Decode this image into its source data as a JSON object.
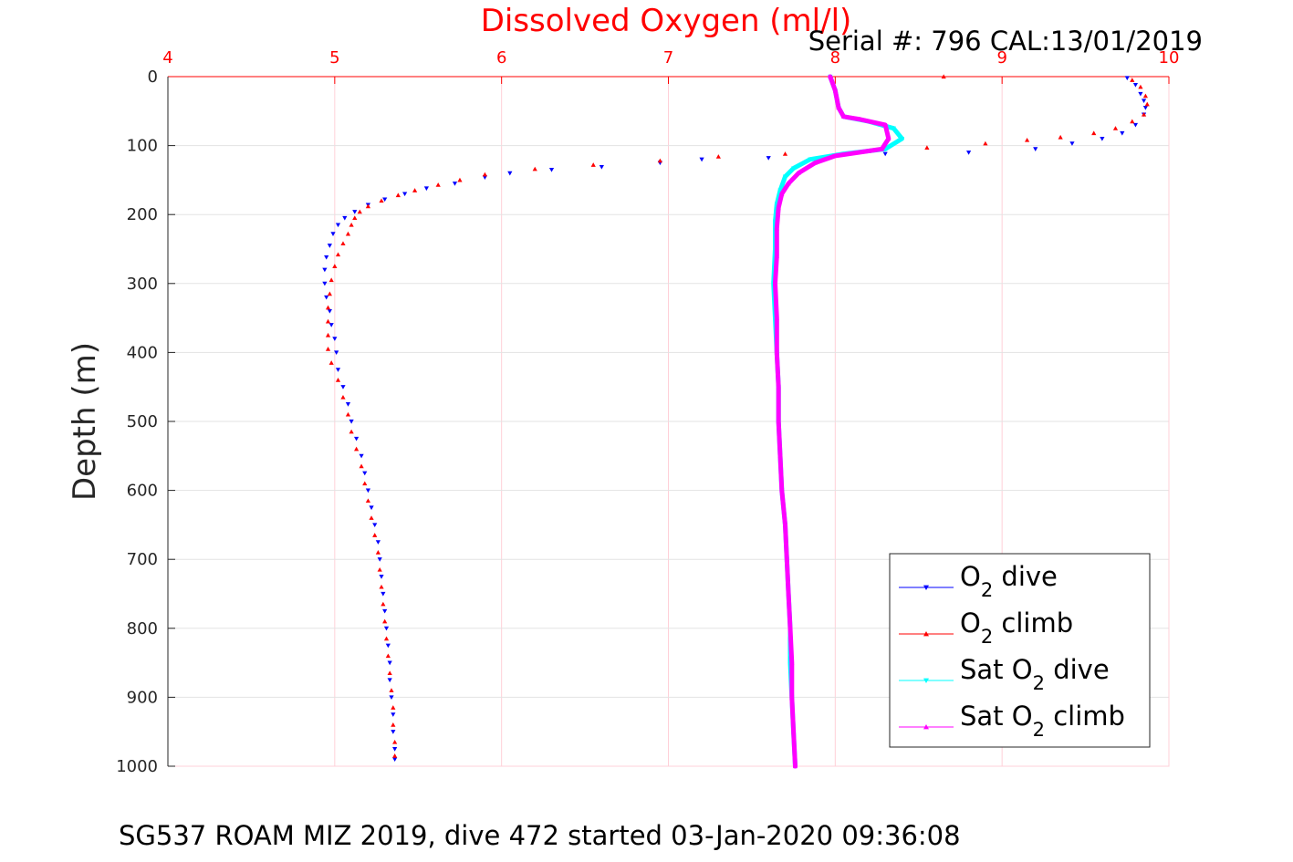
{
  "chart_data": {
    "type": "scatter",
    "title": "Dissolved Oxygen (ml/l)",
    "serial_label": "Serial #: 796  CAL:13/01/2019",
    "caption": "SG537 ROAM MIZ 2019, dive 472 started 03-Jan-2020 09:36:08",
    "ylabel": "Depth (m)",
    "xlim": [
      4,
      10
    ],
    "ylim": [
      0,
      1000
    ],
    "y_reversed": true,
    "x_axis_position": "top",
    "x_ticks": [
      "4",
      "5",
      "6",
      "7",
      "8",
      "9",
      "10"
    ],
    "y_ticks": [
      "0",
      "100",
      "200",
      "300",
      "400",
      "500",
      "600",
      "700",
      "800",
      "900",
      "1000"
    ],
    "grid": true,
    "legend_position": "bottom-right",
    "series": [
      {
        "name": "O2 dive",
        "legend_main": "O",
        "legend_sub": "2",
        "legend_rest": " dive",
        "color": "#0000ff",
        "marker": "triangle-down",
        "points": [
          [
            9.75,
            2
          ],
          [
            9.8,
            12
          ],
          [
            9.83,
            25
          ],
          [
            9.85,
            35
          ],
          [
            9.86,
            45
          ],
          [
            9.85,
            55
          ],
          [
            9.8,
            70
          ],
          [
            9.72,
            82
          ],
          [
            9.6,
            90
          ],
          [
            9.42,
            97
          ],
          [
            9.2,
            105
          ],
          [
            8.8,
            110
          ],
          [
            8.3,
            112
          ],
          [
            7.6,
            118
          ],
          [
            7.2,
            120
          ],
          [
            6.95,
            125
          ],
          [
            6.6,
            131
          ],
          [
            6.3,
            135
          ],
          [
            6.05,
            140
          ],
          [
            5.9,
            146
          ],
          [
            5.72,
            155
          ],
          [
            5.55,
            162
          ],
          [
            5.42,
            170
          ],
          [
            5.3,
            178
          ],
          [
            5.2,
            186
          ],
          [
            5.12,
            196
          ],
          [
            5.06,
            205
          ],
          [
            5.02,
            215
          ],
          [
            4.99,
            228
          ],
          [
            4.97,
            245
          ],
          [
            4.95,
            262
          ],
          [
            4.94,
            280
          ],
          [
            4.94,
            300
          ],
          [
            4.95,
            320
          ],
          [
            4.97,
            340
          ],
          [
            4.98,
            360
          ],
          [
            5,
            380
          ],
          [
            5.01,
            400
          ],
          [
            5.02,
            425
          ],
          [
            5.05,
            450
          ],
          [
            5.08,
            475
          ],
          [
            5.1,
            500
          ],
          [
            5.13,
            525
          ],
          [
            5.16,
            550
          ],
          [
            5.18,
            575
          ],
          [
            5.2,
            600
          ],
          [
            5.22,
            625
          ],
          [
            5.24,
            650
          ],
          [
            5.26,
            675
          ],
          [
            5.27,
            700
          ],
          [
            5.28,
            725
          ],
          [
            5.29,
            750
          ],
          [
            5.3,
            775
          ],
          [
            5.31,
            800
          ],
          [
            5.32,
            825
          ],
          [
            5.33,
            850
          ],
          [
            5.33,
            875
          ],
          [
            5.34,
            900
          ],
          [
            5.35,
            925
          ],
          [
            5.35,
            950
          ],
          [
            5.36,
            975
          ],
          [
            5.36,
            990
          ]
        ]
      },
      {
        "name": "O2 climb",
        "legend_main": "O",
        "legend_sub": "2",
        "legend_rest": " climb",
        "color": "#ff0000",
        "marker": "triangle-up",
        "points": [
          [
            8.65,
            0
          ],
          [
            9.78,
            5
          ],
          [
            9.83,
            15
          ],
          [
            9.86,
            28
          ],
          [
            9.87,
            40
          ],
          [
            9.85,
            55
          ],
          [
            9.78,
            65
          ],
          [
            9.68,
            75
          ],
          [
            9.55,
            82
          ],
          [
            9.35,
            88
          ],
          [
            9.15,
            92
          ],
          [
            8.9,
            97
          ],
          [
            8.55,
            103
          ],
          [
            8.2,
            108
          ],
          [
            7.7,
            112
          ],
          [
            7.3,
            116
          ],
          [
            6.95,
            122
          ],
          [
            6.55,
            128
          ],
          [
            6.2,
            134
          ],
          [
            5.9,
            142
          ],
          [
            5.75,
            150
          ],
          [
            5.62,
            157
          ],
          [
            5.48,
            165
          ],
          [
            5.38,
            172
          ],
          [
            5.28,
            180
          ],
          [
            5.2,
            188
          ],
          [
            5.15,
            196
          ],
          [
            5.12,
            205
          ],
          [
            5.1,
            215
          ],
          [
            5.08,
            228
          ],
          [
            5.05,
            242
          ],
          [
            5.02,
            258
          ],
          [
            5,
            275
          ],
          [
            4.98,
            295
          ],
          [
            4.97,
            315
          ],
          [
            4.96,
            335
          ],
          [
            4.96,
            355
          ],
          [
            4.96,
            375
          ],
          [
            4.96,
            395
          ],
          [
            4.98,
            415
          ],
          [
            5.02,
            440
          ],
          [
            5.05,
            465
          ],
          [
            5.08,
            490
          ],
          [
            5.1,
            515
          ],
          [
            5.13,
            540
          ],
          [
            5.16,
            565
          ],
          [
            5.18,
            590
          ],
          [
            5.2,
            615
          ],
          [
            5.22,
            640
          ],
          [
            5.24,
            665
          ],
          [
            5.26,
            690
          ],
          [
            5.27,
            715
          ],
          [
            5.28,
            740
          ],
          [
            5.29,
            765
          ],
          [
            5.3,
            790
          ],
          [
            5.31,
            815
          ],
          [
            5.32,
            840
          ],
          [
            5.33,
            865
          ],
          [
            5.34,
            890
          ],
          [
            5.35,
            915
          ],
          [
            5.35,
            940
          ],
          [
            5.36,
            965
          ],
          [
            5.36,
            985
          ]
        ]
      },
      {
        "name": "Sat O2 dive",
        "legend_main": "Sat O",
        "legend_sub": "2",
        "legend_rest": " dive",
        "color": "#00ffff",
        "marker": "triangle-down",
        "points": [
          [
            7.97,
            0
          ],
          [
            8.0,
            20
          ],
          [
            8.02,
            45
          ],
          [
            8.05,
            58
          ],
          [
            8.2,
            65
          ],
          [
            8.35,
            75
          ],
          [
            8.4,
            90
          ],
          [
            8.3,
            105
          ],
          [
            8.05,
            112
          ],
          [
            7.85,
            120
          ],
          [
            7.75,
            133
          ],
          [
            7.7,
            145
          ],
          [
            7.67,
            165
          ],
          [
            7.65,
            185
          ],
          [
            7.64,
            210
          ],
          [
            7.64,
            250
          ],
          [
            7.63,
            300
          ],
          [
            7.64,
            350
          ],
          [
            7.65,
            400
          ],
          [
            7.66,
            450
          ],
          [
            7.66,
            500
          ],
          [
            7.67,
            550
          ],
          [
            7.68,
            600
          ],
          [
            7.7,
            650
          ],
          [
            7.71,
            700
          ],
          [
            7.72,
            750
          ],
          [
            7.73,
            800
          ],
          [
            7.73,
            850
          ],
          [
            7.74,
            900
          ],
          [
            7.75,
            950
          ],
          [
            7.76,
            1000
          ]
        ]
      },
      {
        "name": "Sat O2 climb",
        "legend_main": "Sat O",
        "legend_sub": "2",
        "legend_rest": " climb",
        "color": "#ff00ff",
        "marker": "triangle-up",
        "points": [
          [
            7.97,
            0
          ],
          [
            8.0,
            20
          ],
          [
            8.02,
            45
          ],
          [
            8.05,
            58
          ],
          [
            8.15,
            62
          ],
          [
            8.3,
            70
          ],
          [
            8.32,
            90
          ],
          [
            8.28,
            105
          ],
          [
            8.0,
            115
          ],
          [
            7.88,
            125
          ],
          [
            7.78,
            140
          ],
          [
            7.72,
            155
          ],
          [
            7.68,
            170
          ],
          [
            7.66,
            190
          ],
          [
            7.65,
            220
          ],
          [
            7.65,
            260
          ],
          [
            7.64,
            300
          ],
          [
            7.65,
            350
          ],
          [
            7.65,
            400
          ],
          [
            7.66,
            450
          ],
          [
            7.66,
            500
          ],
          [
            7.67,
            550
          ],
          [
            7.68,
            600
          ],
          [
            7.7,
            650
          ],
          [
            7.71,
            700
          ],
          [
            7.72,
            750
          ],
          [
            7.73,
            800
          ],
          [
            7.74,
            850
          ],
          [
            7.74,
            900
          ],
          [
            7.75,
            950
          ],
          [
            7.76,
            1000
          ]
        ]
      }
    ]
  }
}
